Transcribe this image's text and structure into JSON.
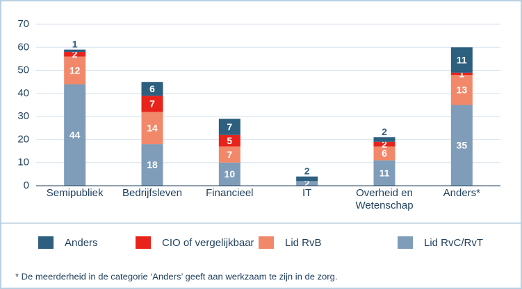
{
  "chart_data": {
    "type": "stacked_bar",
    "categories": [
      "Semipubliek",
      "Bedrijfsleven",
      "Financieel",
      "IT",
      "Overheid en Wetenschap",
      "Anders*"
    ],
    "series": [
      {
        "name": "Anders",
        "color": "#2d5f7e",
        "values": [
          1,
          6,
          7,
          2,
          2,
          11
        ]
      },
      {
        "name": "CIO of vergelijkbaar",
        "color": "#e8231c",
        "values": [
          2,
          7,
          5,
          0,
          2,
          1
        ]
      },
      {
        "name": "Lid RvB",
        "color": "#f2886a",
        "values": [
          12,
          14,
          7,
          0,
          6,
          13
        ]
      },
      {
        "name": "Lid RvC/RvT",
        "color": "#7f9cb9",
        "values": [
          44,
          18,
          10,
          2,
          11,
          35
        ]
      }
    ],
    "ylim": [
      0,
      70
    ],
    "yticks": [
      0,
      10,
      20,
      30,
      40,
      50,
      60,
      70
    ],
    "grid": true,
    "footnote": "* De meerderheid in de categorie ‘Anders’ geeft aan werkzaam te zijn in de zorg."
  }
}
